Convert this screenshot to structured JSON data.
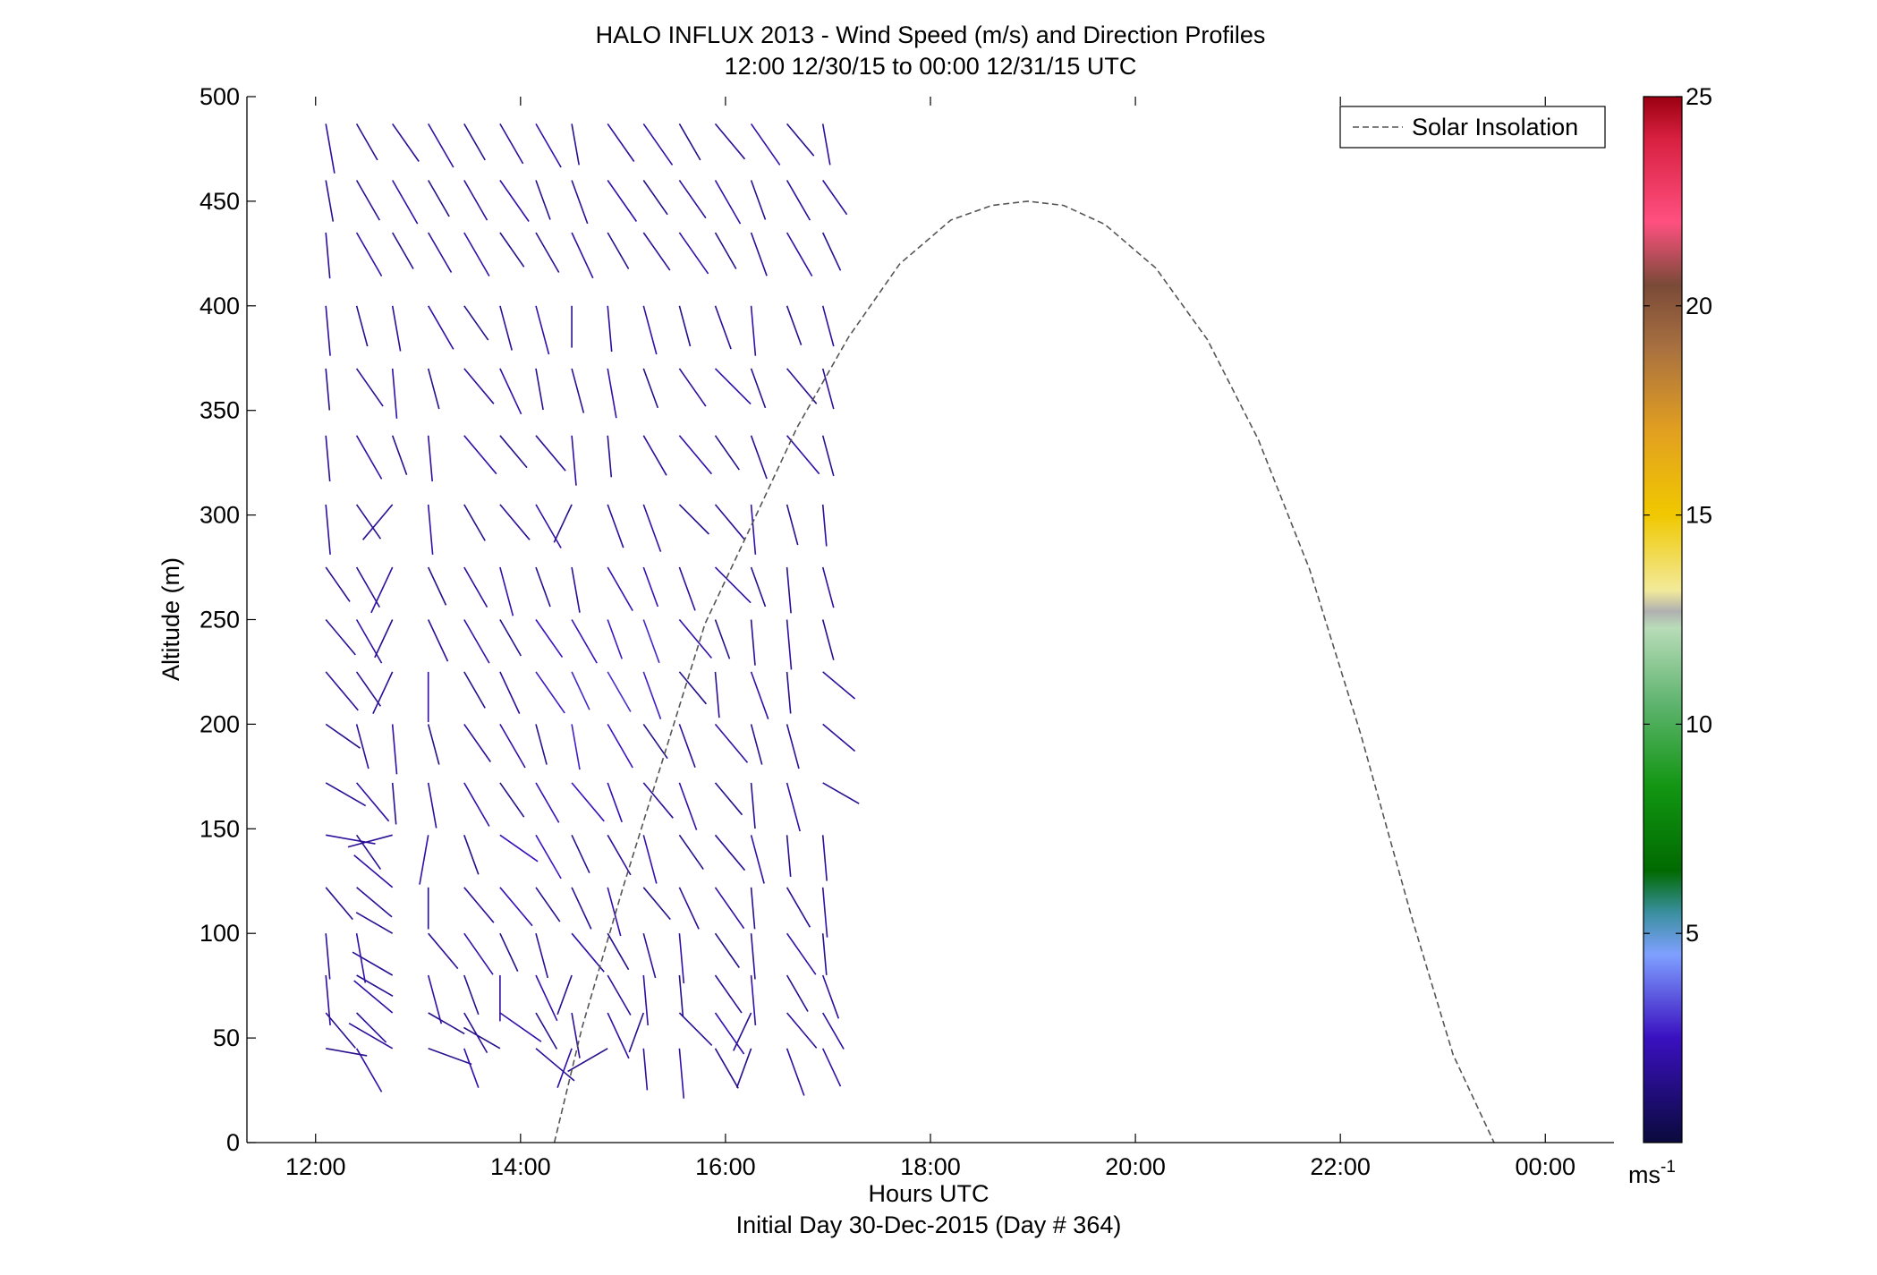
{
  "chart_data": {
    "type": "wind-barb-profile",
    "title": "HALO INFLUX 2013 - Wind Speed (m/s) and Direction Profiles",
    "subtitle": "12:00 12/30/15 to 00:00 12/31/15  UTC",
    "xlabel": "Hours UTC",
    "xlabel2": "Initial Day 30-Dec-2015 (Day # 364)",
    "ylabel": "Altitude (m)",
    "xlim": [
      11.33,
      24.67
    ],
    "ylim": [
      0,
      500
    ],
    "xticks": [
      {
        "value": 12,
        "label": "12:00"
      },
      {
        "value": 14,
        "label": "14:00"
      },
      {
        "value": 16,
        "label": "16:00"
      },
      {
        "value": 18,
        "label": "18:00"
      },
      {
        "value": 20,
        "label": "20:00"
      },
      {
        "value": 22,
        "label": "22:00"
      },
      {
        "value": 24,
        "label": "00:00"
      }
    ],
    "yticks": [
      {
        "value": 0,
        "label": "0"
      },
      {
        "value": 50,
        "label": "50"
      },
      {
        "value": 100,
        "label": "100"
      },
      {
        "value": 150,
        "label": "150"
      },
      {
        "value": 200,
        "label": "200"
      },
      {
        "value": 250,
        "label": "250"
      },
      {
        "value": 300,
        "label": "300"
      },
      {
        "value": 350,
        "label": "350"
      },
      {
        "value": 400,
        "label": "400"
      },
      {
        "value": 450,
        "label": "450"
      },
      {
        "value": 500,
        "label": "500"
      }
    ],
    "legend": {
      "label": "Solar Insolation",
      "placement": "top-right",
      "style": "dashed",
      "color": "#555555"
    },
    "colorbar": {
      "range": [
        0,
        25
      ],
      "ticks": [
        {
          "value": 5,
          "label": "5"
        },
        {
          "value": 10,
          "label": "10"
        },
        {
          "value": 15,
          "label": "15"
        },
        {
          "value": 20,
          "label": "20"
        },
        {
          "value": 25,
          "label": "25"
        }
      ],
      "unit_base": "ms",
      "unit_exp": "-1",
      "stops": [
        {
          "value": 0,
          "color": "#0a0a3c"
        },
        {
          "value": 2.5,
          "color": "#3a10c0"
        },
        {
          "value": 4.5,
          "color": "#7fa0ff"
        },
        {
          "value": 5.5,
          "color": "#3a8f9f"
        },
        {
          "value": 6.5,
          "color": "#006a00"
        },
        {
          "value": 8.5,
          "color": "#129612"
        },
        {
          "value": 10.5,
          "color": "#5fb46f"
        },
        {
          "value": 12.3,
          "color": "#b8dcb8"
        },
        {
          "value": 12.7,
          "color": "#b0b0b0"
        },
        {
          "value": 13.2,
          "color": "#f2ea9a"
        },
        {
          "value": 15,
          "color": "#f0c800"
        },
        {
          "value": 17,
          "color": "#e2a020"
        },
        {
          "value": 19,
          "color": "#a87040"
        },
        {
          "value": 20.5,
          "color": "#7a4a38"
        },
        {
          "value": 22,
          "color": "#ff5080"
        },
        {
          "value": 24,
          "color": "#d82040"
        },
        {
          "value": 25,
          "color": "#9a0010"
        }
      ]
    },
    "solar_insolation": {
      "x": [
        14.33,
        14.6,
        15.0,
        15.4,
        15.8,
        16.3,
        16.7,
        17.2,
        17.7,
        18.2,
        18.6,
        18.95,
        19.3,
        19.7,
        20.2,
        20.7,
        21.2,
        21.7,
        22.2,
        22.7,
        23.1,
        23.5
      ],
      "y": [
        0,
        55,
        122,
        185,
        248,
        300,
        342,
        385,
        420,
        441,
        448,
        450,
        448,
        439,
        418,
        384,
        336,
        274,
        195,
        107,
        42,
        0
      ]
    },
    "wind_barbs": {
      "altitudes": [
        45,
        62,
        80,
        100,
        122,
        147,
        172,
        200,
        225,
        250,
        275,
        305,
        338,
        370,
        400,
        435,
        460,
        487
      ],
      "times": [
        12.1,
        12.4,
        12.75,
        13.1,
        13.45,
        13.8,
        14.15,
        14.5,
        14.85,
        15.2,
        15.55,
        15.9,
        16.25,
        16.6,
        16.95
      ],
      "length_m": [
        [
          10,
          12,
          12,
          11,
          10,
          10,
          12,
          10,
          11,
          10,
          12,
          11,
          10,
          12,
          10
        ],
        [
          11,
          10,
          12,
          10,
          11,
          12,
          10,
          11,
          12,
          10,
          11,
          12,
          10,
          11,
          10
        ],
        [
          12,
          10,
          11,
          12,
          10,
          11,
          12,
          10,
          11,
          12,
          10,
          11,
          12,
          10,
          11
        ],
        [
          11,
          12,
          10,
          11,
          12,
          10,
          11,
          12,
          10,
          11,
          12,
          10,
          11,
          12,
          10
        ],
        [
          10,
          11,
          12,
          10,
          11,
          12,
          10,
          11,
          12,
          10,
          11,
          12,
          10,
          11,
          12
        ],
        [
          12,
          10,
          11,
          12,
          10,
          11,
          12,
          10,
          11,
          12,
          10,
          11,
          12,
          10,
          11
        ],
        [
          11,
          12,
          10,
          11,
          12,
          10,
          11,
          12,
          10,
          11,
          12,
          10,
          11,
          12,
          10
        ],
        [
          10,
          11,
          12,
          10,
          11,
          12,
          10,
          11,
          12,
          10,
          11,
          12,
          10,
          11,
          10
        ],
        [
          12,
          10,
          11,
          12,
          10,
          11,
          12,
          10,
          11,
          12,
          10,
          11,
          12,
          10,
          10
        ],
        [
          11,
          12,
          10,
          11,
          12,
          10,
          11,
          12,
          10,
          11,
          12,
          10,
          11,
          12,
          10
        ],
        [
          10,
          11,
          12,
          10,
          11,
          12,
          10,
          11,
          12,
          10,
          11,
          12,
          10,
          11,
          10
        ],
        [
          12,
          10,
          11,
          12,
          10,
          11,
          12,
          10,
          11,
          12,
          10,
          11,
          12,
          10,
          10
        ],
        [
          11,
          12,
          10,
          11,
          12,
          10,
          11,
          12,
          10,
          11,
          12,
          10,
          11,
          12,
          10
        ],
        [
          10,
          11,
          12,
          10,
          11,
          12,
          10,
          11,
          12,
          10,
          11,
          12,
          10,
          11,
          10
        ],
        [
          12,
          10,
          11,
          12,
          10,
          11,
          12,
          10,
          11,
          12,
          10,
          11,
          12,
          10,
          10
        ],
        [
          11,
          12,
          10,
          11,
          12,
          10,
          11,
          12,
          10,
          11,
          12,
          10,
          11,
          12,
          10
        ],
        [
          10,
          11,
          12,
          10,
          11,
          12,
          10,
          11,
          12,
          10,
          11,
          12,
          10,
          11,
          10
        ],
        [
          12,
          10,
          11,
          12,
          10,
          11,
          12,
          10,
          11,
          12,
          10,
          11,
          12,
          10,
          10
        ]
      ],
      "angle_deg": [
        [
          100,
          150,
          300,
          110,
          160,
          300,
          130,
          200,
          240,
          175,
          175,
          150,
          200,
          160,
          155
        ],
        [
          140,
          135,
          310,
          120,
          150,
          125,
          150,
          170,
          155,
          200,
          135,
          145,
          205,
          140,
          150
        ],
        [
          175,
          120,
          300,
          165,
          160,
          180,
          155,
          200,
          150,
          175,
          175,
          145,
          175,
          150,
          160
        ],
        [
          175,
          170,
          300,
          140,
          145,
          155,
          165,
          140,
          150,
          165,
          175,
          145,
          175,
          145,
          175
        ],
        [
          140,
          130,
          310,
          180,
          140,
          140,
          145,
          155,
          165,
          140,
          155,
          145,
          175,
          150,
          175
        ],
        [
          100,
          145,
          255,
          190,
          160,
          125,
          150,
          155,
          150,
          165,
          145,
          140,
          165,
          175,
          175
        ],
        [
          120,
          140,
          175,
          170,
          150,
          145,
          150,
          140,
          160,
          140,
          160,
          140,
          175,
          165,
          120
        ],
        [
          125,
          165,
          175,
          165,
          145,
          150,
          165,
          170,
          150,
          145,
          160,
          140,
          165,
          165,
          130
        ],
        [
          140,
          145,
          205,
          180,
          150,
          155,
          145,
          155,
          150,
          160,
          140,
          175,
          160,
          175,
          130
        ],
        [
          140,
          150,
          205,
          155,
          150,
          150,
          145,
          150,
          160,
          160,
          140,
          160,
          175,
          175,
          165
        ],
        [
          145,
          150,
          205,
          155,
          150,
          165,
          160,
          170,
          150,
          160,
          160,
          135,
          160,
          175,
          165
        ],
        [
          175,
          145,
          220,
          175,
          150,
          140,
          150,
          205,
          160,
          160,
          135,
          140,
          175,
          165,
          175
        ],
        [
          175,
          150,
          160,
          175,
          140,
          140,
          140,
          175,
          175,
          150,
          140,
          145,
          160,
          140,
          165
        ],
        [
          175,
          145,
          175,
          165,
          140,
          155,
          170,
          165,
          170,
          160,
          145,
          135,
          160,
          140,
          165
        ],
        [
          175,
          165,
          170,
          150,
          145,
          165,
          165,
          180,
          175,
          165,
          165,
          160,
          175,
          160,
          165
        ],
        [
          175,
          150,
          150,
          150,
          150,
          145,
          150,
          155,
          150,
          145,
          145,
          150,
          160,
          150,
          155
        ],
        [
          170,
          150,
          150,
          150,
          150,
          145,
          160,
          160,
          145,
          145,
          145,
          150,
          160,
          150,
          145
        ],
        [
          170,
          150,
          145,
          150,
          150,
          150,
          150,
          170,
          145,
          145,
          150,
          140,
          145,
          140,
          170
        ]
      ],
      "speed_ms": [
        [
          1.5,
          2,
          1.8,
          1.6,
          2.2,
          1.4,
          1.7,
          2,
          1.5,
          1.8,
          2.1,
          1.6,
          1.5,
          1.9,
          2
        ],
        [
          1.6,
          1.8,
          2,
          1.5,
          1.7,
          2.1,
          1.6,
          1.8,
          2,
          1.5,
          1.7,
          2.2,
          1.6,
          1.8,
          1.9
        ],
        [
          1.8,
          1.6,
          1.7,
          2,
          1.5,
          1.8,
          2.1,
          1.6,
          1.8,
          2,
          1.5,
          1.7,
          2.1,
          1.6,
          1.8
        ],
        [
          1.7,
          2,
          1.6,
          1.8,
          2.1,
          1.5,
          1.7,
          2,
          1.6,
          1.8,
          2.1,
          1.5,
          1.7,
          2,
          1.6
        ],
        [
          1.6,
          1.7,
          2,
          1.5,
          1.8,
          2.3,
          1.6,
          1.7,
          2.1,
          1.5,
          1.8,
          2,
          1.6,
          1.7,
          2
        ],
        [
          1.8,
          1.6,
          1.7,
          2,
          1.5,
          2.4,
          2.6,
          1.6,
          1.8,
          2.2,
          1.5,
          1.7,
          2,
          1.6,
          1.8
        ],
        [
          1.7,
          2,
          1.6,
          1.8,
          2.1,
          1.5,
          2.3,
          2.5,
          2.2,
          1.8,
          2.1,
          1.5,
          1.7,
          2,
          1.6
        ],
        [
          1.6,
          1.7,
          2,
          1.5,
          1.8,
          2.1,
          1.6,
          2.7,
          2.5,
          1.5,
          1.8,
          2,
          1.6,
          1.7,
          1.8
        ],
        [
          1.8,
          1.6,
          1.7,
          2,
          1.5,
          1.8,
          2.6,
          2.8,
          2.9,
          2.7,
          1.5,
          1.7,
          2.1,
          1.6,
          1.8
        ],
        [
          1.7,
          2,
          1.6,
          1.8,
          2.1,
          1.5,
          2.5,
          2.4,
          2.6,
          2.8,
          2.1,
          1.5,
          1.7,
          2,
          1.6
        ],
        [
          1.6,
          1.7,
          2,
          1.5,
          1.8,
          2.1,
          1.6,
          1.7,
          2.2,
          2.3,
          1.8,
          2,
          1.6,
          1.7,
          1.8
        ],
        [
          1.8,
          1.6,
          1.7,
          2,
          1.5,
          1.8,
          2.1,
          1.6,
          1.8,
          2,
          1.5,
          1.7,
          2.1,
          1.6,
          1.8
        ],
        [
          1.7,
          2,
          1.6,
          1.8,
          2.1,
          1.5,
          1.7,
          2,
          1.6,
          1.8,
          2.1,
          1.5,
          1.7,
          2,
          1.6
        ],
        [
          1.6,
          1.7,
          2,
          1.5,
          1.8,
          2.1,
          1.6,
          1.7,
          2.1,
          1.5,
          1.8,
          2,
          1.6,
          1.7,
          1.8
        ],
        [
          1.8,
          1.6,
          1.7,
          2,
          1.5,
          1.8,
          2.1,
          1.6,
          1.8,
          2,
          1.5,
          1.7,
          2.1,
          1.6,
          1.8
        ],
        [
          1.7,
          2,
          1.6,
          1.8,
          2.1,
          1.5,
          1.7,
          2,
          1.6,
          1.8,
          2.1,
          1.5,
          1.7,
          2,
          1.6
        ],
        [
          1.6,
          1.7,
          2,
          1.5,
          1.8,
          2.1,
          1.6,
          1.7,
          2.1,
          1.5,
          1.8,
          2,
          1.6,
          1.7,
          1.8
        ],
        [
          1.8,
          1.6,
          1.7,
          2,
          1.5,
          1.8,
          2.1,
          1.6,
          1.8,
          2,
          1.5,
          1.7,
          2.1,
          1.6,
          1.8
        ]
      ]
    }
  }
}
